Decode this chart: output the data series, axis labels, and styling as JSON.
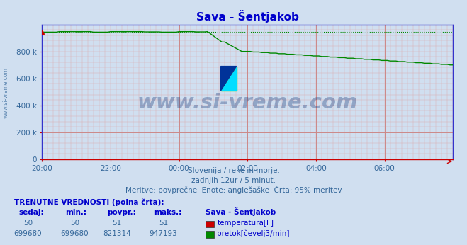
{
  "title": "Sava - Šentjakob",
  "title_color": "#0000cc",
  "bg_color": "#d0dff0",
  "plot_bg_color": "#d0dff0",
  "grid_color_h": "#cc8888",
  "grid_color_v": "#cc8888",
  "grid_minor_color": "#ddaaaa",
  "xmin": 0,
  "xmax": 144,
  "ymin": 0,
  "ymax": 1000000,
  "yticks": [
    0,
    200000,
    400000,
    600000,
    800000
  ],
  "ytick_labels": [
    "0",
    "200 k",
    "400 k",
    "600 k",
    "800 k"
  ],
  "xtick_positions": [
    0,
    24,
    48,
    72,
    96,
    120
  ],
  "xtick_labels": [
    "20:00",
    "22:00",
    "00:00",
    "02:00",
    "04:00",
    "06:00"
  ],
  "watermark_text": "www.si-vreme.com",
  "watermark_color": "#1a3a7a",
  "sub_text1": "Slovenija / reke in morje.",
  "sub_text2": "zadnjih 12ur / 5 minut.",
  "sub_text3": "Meritve: povprečne  Enote: anglešaške  Črta: 95% meritev",
  "sub_text_color": "#336699",
  "ylabel_text": "www.si-vreme.com",
  "ylabel_color": "#336699",
  "temp_color": "#cc0000",
  "flow_color": "#008800",
  "ref_line_y": 947193,
  "axis_color_lr": "#3333cc",
  "axis_color_bt": "#cc0000",
  "tick_color": "#336699",
  "table_header": "TRENUTNE VREDNOSTI (polna črta):",
  "table_col1": "sedaj:",
  "table_col2": "min.:",
  "table_col3": "povpr.:",
  "table_col4": "maks.:",
  "table_col5": "Sava - Šentjakob",
  "temp_value": "50",
  "temp_min": "50",
  "temp_avg": "51",
  "temp_max": "51",
  "flow_value": "699680",
  "flow_min": "699680",
  "flow_avg": "821314",
  "flow_max": "947193",
  "legend_label_temp": "temperatura[F]",
  "legend_label_flow": "pretok[čevelj3/min]"
}
